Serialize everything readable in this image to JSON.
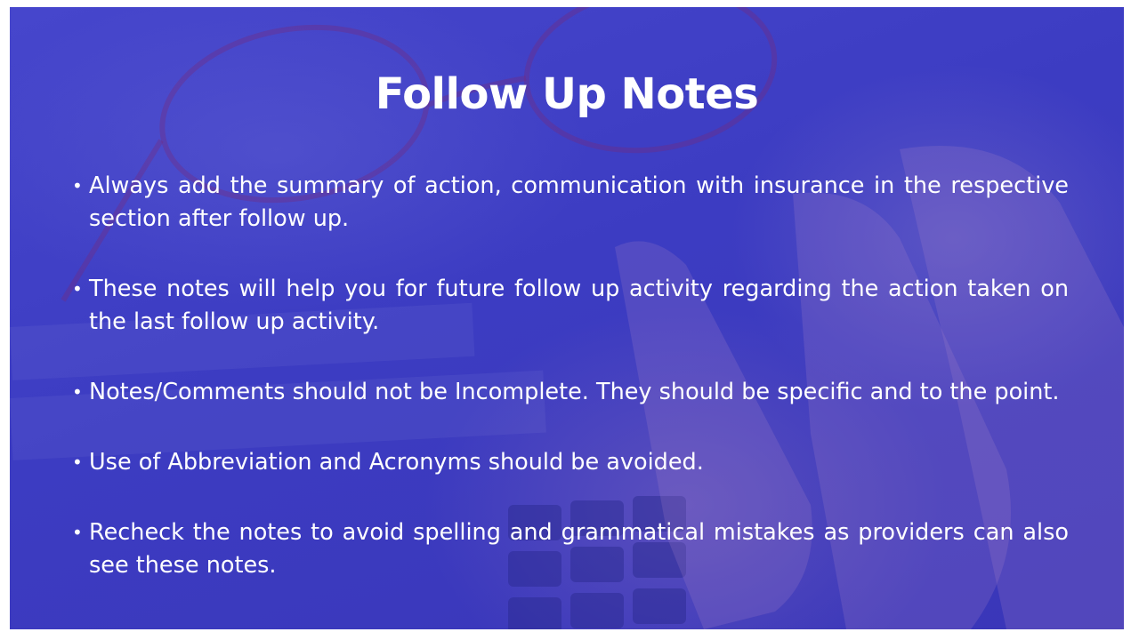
{
  "slide": {
    "title": "Follow Up Notes",
    "bullet_marker": "•",
    "bullets": [
      "Always add the summary of action, communication with insurance in the respective section after follow up.",
      "These notes will help you for future follow up activity regarding the action taken on the last follow up activity.",
      "Notes/Comments should not be Incomplete. They should be specific and to the point.",
      "Use of Abbreviation and Acronyms should be avoided.",
      "Recheck the notes to avoid spelling and grammatical mistakes as providers can also see these notes."
    ]
  },
  "colors": {
    "overlay": "#3f3fc6",
    "text": "#ffffff"
  }
}
